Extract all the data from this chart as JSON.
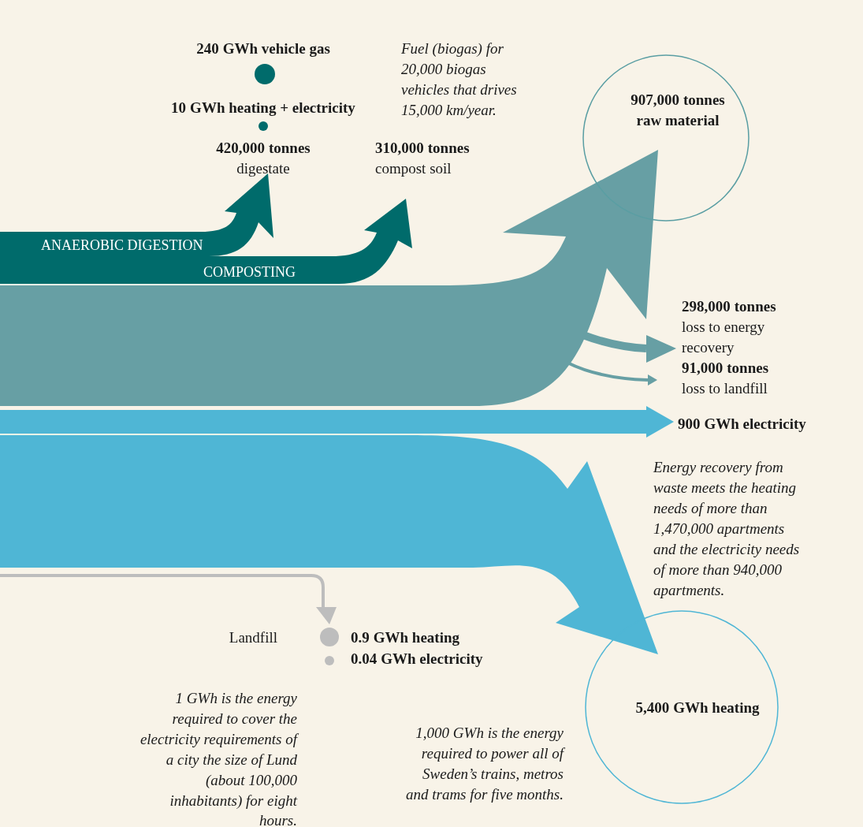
{
  "chart_data": {
    "type": "other",
    "categories": [
      "GWh vehicle gas",
      "GWh heating + electricity",
      "tonnes",
      "tonnes",
      "tonnes",
      "tonnes",
      "tonnes",
      "GWh electricity",
      "GWh heating",
      "GWh electricity",
      "GWh heating"
    ],
    "values": [
      240,
      10,
      420000,
      310000,
      907000,
      298000,
      91000,
      900,
      0.9,
      0.04,
      5400
    ],
    "value_labels": [
      "240",
      "10",
      "420,000",
      "310,000",
      "907,000",
      "298,000",
      "91,000",
      "900",
      "0.9",
      "0.04",
      "5,400"
    ],
    "annotations": [
      "ANAEROBIC DIGESTION",
      "COMPOSTING",
      "digestate",
      "Fuel (biogas) for",
      "20,000  biogas",
      "vehicles that drives",
      "15,000 km/year.",
      "compost soil",
      "raw material",
      "loss to energy",
      "recovery",
      "loss to landfill",
      "Energy recovery from",
      "waste meets the heating",
      "needs of more than",
      "1,470,000 apartments",
      "and the electricity needs",
      "of more than 940,000",
      "apartments.",
      "Landfill",
      "1 GWh is the energy",
      "required to cover the",
      "electricity requirements of",
      "a city the size of Lund",
      "(about 100,000",
      "inhabitants) for eight",
      "hours.",
      "1,000 GWh is the energy",
      "required to power all of",
      "Sweden’s trains, metros",
      "and trams for five months."
    ]
  }
}
